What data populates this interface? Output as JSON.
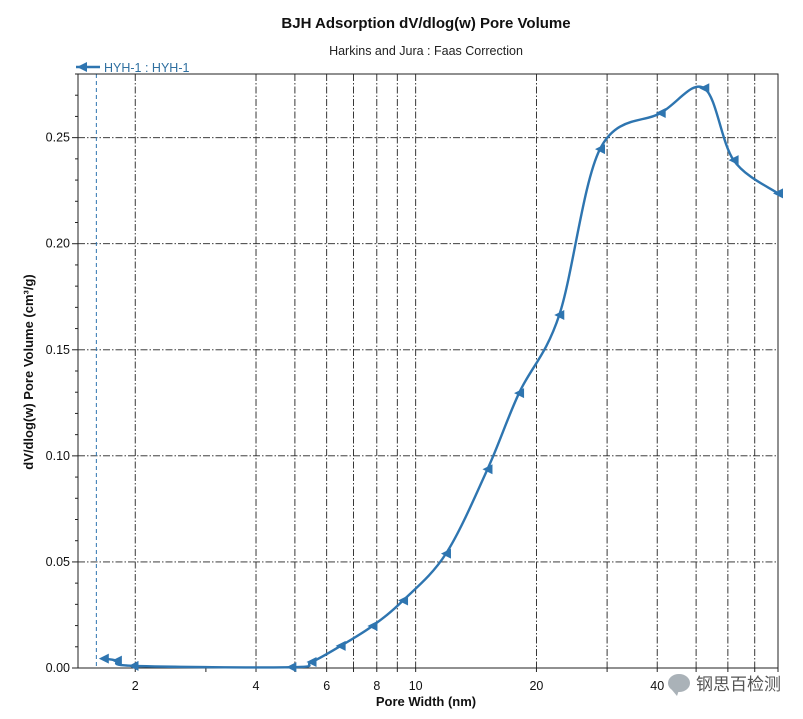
{
  "chart_data": {
    "type": "line",
    "title": "BJH Adsorption dV/dlog(w) Pore Volume",
    "subtitle": "Harkins and Jura : Faas Correction",
    "xlabel": "Pore Width (nm)",
    "ylabel": "dV/dlog(w) Pore Volume (cm³/g)",
    "x_scale": "log",
    "xlim": [
      1.44,
      80
    ],
    "ylim": [
      0,
      0.28
    ],
    "x_ticks": [
      2,
      4,
      6,
      8,
      10,
      20,
      40
    ],
    "x_tick_labels": [
      "2",
      "4",
      "6",
      "8",
      "10",
      "20",
      "40"
    ],
    "x_grid_values": [
      2,
      4,
      5,
      6,
      7,
      8,
      9,
      10,
      20,
      30,
      40,
      50,
      60,
      70
    ],
    "y_ticks": [
      0.0,
      0.05,
      0.1,
      0.15,
      0.2,
      0.25
    ],
    "y_tick_labels": [
      "0.00",
      "0.05",
      "0.10",
      "0.15",
      "0.20",
      "0.25"
    ],
    "grid": true,
    "legend_position": "top-left",
    "reference_line_x": 1.6,
    "series": [
      {
        "name": "HYH-1 : HYH-1",
        "color": "#2e75b0",
        "marker": "left-triangle",
        "x": [
          1.67,
          1.8,
          1.98,
          4.9,
          5.5,
          6.5,
          7.8,
          9.3,
          11.9,
          15.1,
          18.1,
          22.8,
          28.8,
          40.8,
          52.4,
          62.0,
          80.0
        ],
        "y": [
          0.0044,
          0.0035,
          0.001,
          0.0004,
          0.0028,
          0.0104,
          0.0198,
          0.0318,
          0.0539,
          0.0937,
          0.1296,
          0.1664,
          0.2446,
          0.2616,
          0.2733,
          0.2394,
          0.2237
        ]
      }
    ]
  },
  "watermark": "钢思百检测"
}
